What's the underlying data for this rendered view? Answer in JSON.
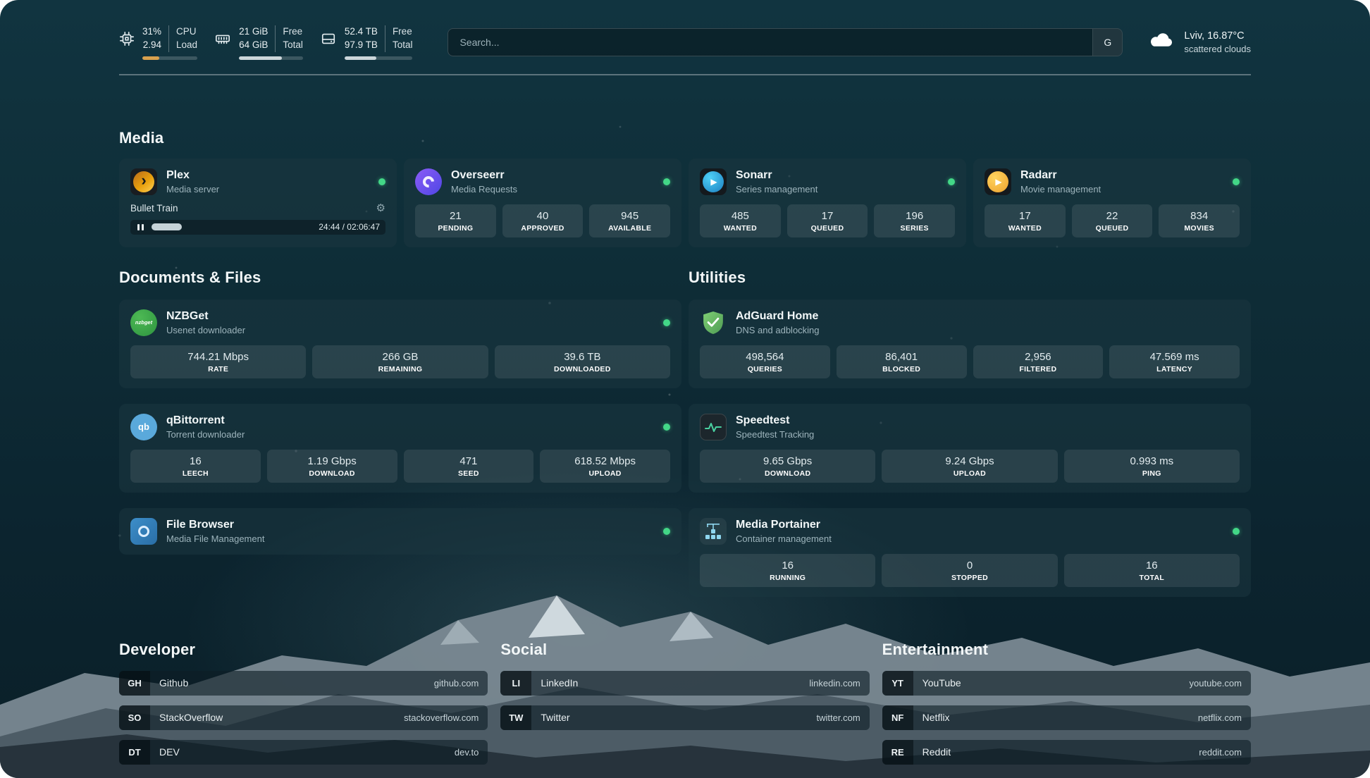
{
  "header": {
    "cpu": {
      "value_top": "31%",
      "value_bottom": "2.94",
      "label_top": "CPU",
      "label_bottom": "Load",
      "bar_percent": 31
    },
    "memory": {
      "value_top": "21 GiB",
      "value_bottom": "64 GiB",
      "label_top": "Free",
      "label_bottom": "Total",
      "bar_percent": 67
    },
    "disk": {
      "value_top": "52.4 TB",
      "value_bottom": "97.9 TB",
      "label_top": "Free",
      "label_bottom": "Total",
      "bar_percent": 47
    },
    "search": {
      "placeholder": "Search...",
      "provider_button": "G"
    },
    "weather": {
      "location_temperature": "Lviv, 16.87°C",
      "condition": "scattered clouds"
    }
  },
  "icons": {
    "plex_glyph": "›",
    "sonarr_glyph": "▶",
    "radarr_glyph": "▶",
    "nzbget_text": "nzbget",
    "qbittorrent_text": "qb",
    "gear_glyph": "⚙"
  },
  "colors": {
    "status_online": "#43d787",
    "plex_accent": "#e5a00d",
    "adguard_green": "#5fae57",
    "speedtest_pulse": "#49d0a0",
    "cpu_bar": "#d9a14e"
  },
  "sections": {
    "media": {
      "title": "Media",
      "plex": {
        "name": "Plex",
        "subtitle": "Media server",
        "now_playing": "Bullet Train",
        "time": "24:44 / 02:06:47",
        "progress_percent": 19
      },
      "overseerr": {
        "name": "Overseerr",
        "subtitle": "Media Requests",
        "stats": [
          {
            "value": "21",
            "label": "PENDING"
          },
          {
            "value": "40",
            "label": "APPROVED"
          },
          {
            "value": "945",
            "label": "AVAILABLE"
          }
        ]
      },
      "sonarr": {
        "name": "Sonarr",
        "subtitle": "Series management",
        "stats": [
          {
            "value": "485",
            "label": "WANTED"
          },
          {
            "value": "17",
            "label": "QUEUED"
          },
          {
            "value": "196",
            "label": "SERIES"
          }
        ]
      },
      "radarr": {
        "name": "Radarr",
        "subtitle": "Movie management",
        "stats": [
          {
            "value": "17",
            "label": "WANTED"
          },
          {
            "value": "22",
            "label": "QUEUED"
          },
          {
            "value": "834",
            "label": "MOVIES"
          }
        ]
      }
    },
    "documents": {
      "title": "Documents & Files",
      "nzbget": {
        "name": "NZBGet",
        "subtitle": "Usenet downloader",
        "stats": [
          {
            "value": "744.21 Mbps",
            "label": "RATE"
          },
          {
            "value": "266 GB",
            "label": "REMAINING"
          },
          {
            "value": "39.6 TB",
            "label": "DOWNLOADED"
          }
        ]
      },
      "qbittorrent": {
        "name": "qBittorrent",
        "subtitle": "Torrent downloader",
        "stats": [
          {
            "value": "16",
            "label": "LEECH"
          },
          {
            "value": "1.19 Gbps",
            "label": "DOWNLOAD"
          },
          {
            "value": "471",
            "label": "SEED"
          },
          {
            "value": "618.52 Mbps",
            "label": "UPLOAD"
          }
        ]
      },
      "filebrowser": {
        "name": "File Browser",
        "subtitle": "Media File Management"
      }
    },
    "utilities": {
      "title": "Utilities",
      "adguard": {
        "name": "AdGuard Home",
        "subtitle": "DNS and adblocking",
        "stats": [
          {
            "value": "498,564",
            "label": "QUERIES"
          },
          {
            "value": "86,401",
            "label": "BLOCKED"
          },
          {
            "value": "2,956",
            "label": "FILTERED"
          },
          {
            "value": "47.569 ms",
            "label": "LATENCY"
          }
        ]
      },
      "speedtest": {
        "name": "Speedtest",
        "subtitle": "Speedtest Tracking",
        "stats": [
          {
            "value": "9.65 Gbps",
            "label": "DOWNLOAD"
          },
          {
            "value": "9.24 Gbps",
            "label": "UPLOAD"
          },
          {
            "value": "0.993 ms",
            "label": "PING"
          }
        ]
      },
      "portainer": {
        "name": "Media Portainer",
        "subtitle": "Container management",
        "stats": [
          {
            "value": "16",
            "label": "RUNNING"
          },
          {
            "value": "0",
            "label": "STOPPED"
          },
          {
            "value": "16",
            "label": "TOTAL"
          }
        ]
      }
    },
    "bookmarks": {
      "developer": {
        "title": "Developer",
        "links": [
          {
            "abbr": "GH",
            "name": "Github",
            "url": "github.com"
          },
          {
            "abbr": "SO",
            "name": "StackOverflow",
            "url": "stackoverflow.com"
          },
          {
            "abbr": "DT",
            "name": "DEV",
            "url": "dev.to"
          }
        ]
      },
      "social": {
        "title": "Social",
        "links": [
          {
            "abbr": "LI",
            "name": "LinkedIn",
            "url": "linkedin.com"
          },
          {
            "abbr": "TW",
            "name": "Twitter",
            "url": "twitter.com"
          }
        ]
      },
      "entertainment": {
        "title": "Entertainment",
        "links": [
          {
            "abbr": "YT",
            "name": "YouTube",
            "url": "youtube.com"
          },
          {
            "abbr": "NF",
            "name": "Netflix",
            "url": "netflix.com"
          },
          {
            "abbr": "RE",
            "name": "Reddit",
            "url": "reddit.com"
          }
        ]
      }
    }
  }
}
